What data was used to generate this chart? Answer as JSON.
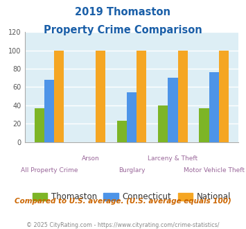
{
  "title_line1": "2019 Thomaston",
  "title_line2": "Property Crime Comparison",
  "categories": [
    "All Property Crime",
    "Arson",
    "Burglary",
    "Larceny & Theft",
    "Motor Vehicle Theft"
  ],
  "thomaston": [
    37,
    0,
    23,
    40,
    37
  ],
  "connecticut": [
    68,
    0,
    54,
    70,
    76
  ],
  "national": [
    100,
    100,
    100,
    100,
    100
  ],
  "thomaston_color": "#7db526",
  "connecticut_color": "#4d94e8",
  "national_color": "#f5a623",
  "ylim": [
    0,
    120
  ],
  "yticks": [
    0,
    20,
    40,
    60,
    80,
    100,
    120
  ],
  "legend_labels": [
    "Thomaston",
    "Connecticut",
    "National"
  ],
  "note": "Compared to U.S. average. (U.S. average equals 100)",
  "footer": "© 2025 CityRating.com - https://www.cityrating.com/crime-statistics/",
  "title_color": "#1a5fa8",
  "note_color": "#cc6600",
  "footer_color": "#888888",
  "bg_color": "#ddeef5",
  "grid_color": "#ffffff",
  "x_label_color": "#996699",
  "bar_width": 0.24
}
